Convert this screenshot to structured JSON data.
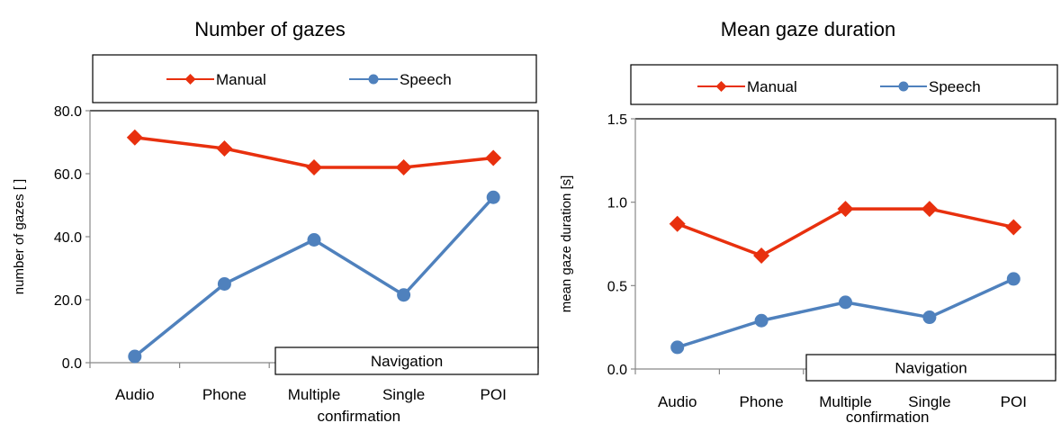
{
  "chart_data": [
    {
      "type": "line",
      "title": "Number of gazes",
      "ylabel": "number of gazes [ ]",
      "xlabel": "",
      "categories": [
        "Audio",
        "Phone",
        "Multiple",
        "Single",
        "POI"
      ],
      "category_sublabel": "confirmation",
      "group_label": "Navigation",
      "yticks": [
        "0.0",
        "20.0",
        "40.0",
        "60.0",
        "80.0"
      ],
      "ylim": [
        0,
        80
      ],
      "legend_position": "top",
      "series": [
        {
          "name": "Manual",
          "color": "#E8300E",
          "marker": "diamond",
          "values": [
            71.5,
            68.0,
            62.0,
            62.0,
            65.0
          ]
        },
        {
          "name": "Speech",
          "color": "#4F81BD",
          "marker": "circle",
          "values": [
            2.0,
            25.0,
            39.0,
            21.5,
            52.5
          ]
        }
      ]
    },
    {
      "type": "line",
      "title": "Mean gaze duration",
      "ylabel": "mean gaze  duration [s]",
      "xlabel": "",
      "categories": [
        "Audio",
        "Phone",
        "Multiple",
        "Single",
        "POI"
      ],
      "category_sublabel": "confirmation",
      "group_label": "Navigation",
      "yticks": [
        "0.0",
        "0.5",
        "1.0",
        "1.5"
      ],
      "ylim": [
        0,
        1.5
      ],
      "legend_position": "top",
      "series": [
        {
          "name": "Manual",
          "color": "#E8300E",
          "marker": "diamond",
          "values": [
            0.87,
            0.68,
            0.96,
            0.96,
            0.85
          ]
        },
        {
          "name": "Speech",
          "color": "#4F81BD",
          "marker": "circle",
          "values": [
            0.13,
            0.29,
            0.4,
            0.31,
            0.54
          ]
        }
      ]
    }
  ]
}
